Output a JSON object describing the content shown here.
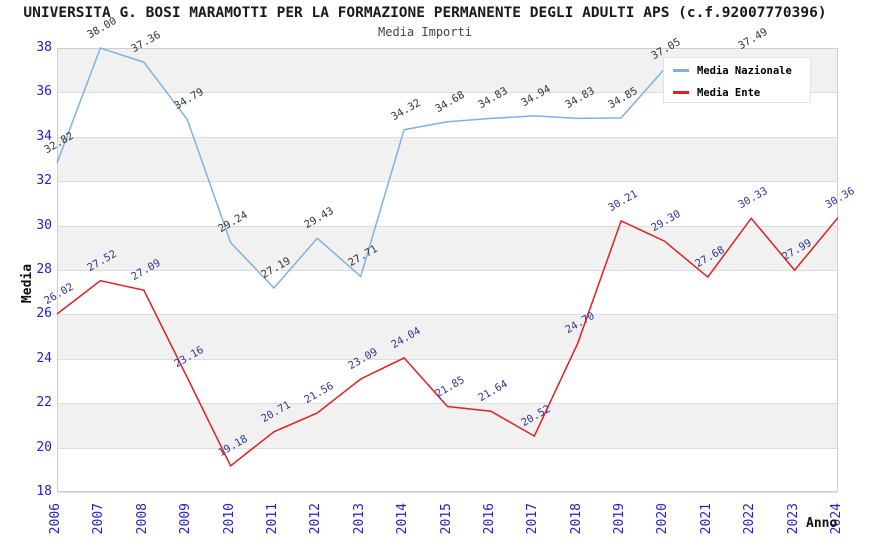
{
  "chart_data": {
    "type": "line",
    "title": "UNIVERSITA G. BOSI MARAMOTTI PER LA FORMAZIONE PERMANENTE DEGLI ADULTI APS (c.f.92007770396)",
    "subtitle": "Media Importi",
    "xlabel": "Anno",
    "ylabel": "Media",
    "ylim": [
      18,
      38
    ],
    "ytick_step": 2,
    "grid": true,
    "legend_position": "top-right",
    "label_decimals": 2,
    "categories": [
      "2006",
      "2007",
      "2008",
      "2009",
      "2010",
      "2011",
      "2012",
      "2013",
      "2014",
      "2015",
      "2016",
      "2017",
      "2018",
      "2019",
      "2020",
      "2021",
      "2022",
      "2023",
      "2024"
    ],
    "series": [
      {
        "name": "Media Nazionale",
        "color": "#7DB2E6",
        "label_color": "#333333",
        "values": [
          32.82,
          38.0,
          37.36,
          34.79,
          29.24,
          27.19,
          29.43,
          27.71,
          34.32,
          34.68,
          34.83,
          34.94,
          34.83,
          34.85,
          37.05,
          null,
          37.49,
          null,
          null
        ]
      },
      {
        "name": "Media Ente",
        "color": "#E02121",
        "label_color": "#333399",
        "values": [
          26.02,
          27.52,
          27.09,
          23.16,
          19.18,
          20.71,
          21.56,
          23.09,
          24.04,
          21.85,
          21.64,
          20.52,
          24.7,
          30.21,
          29.3,
          27.68,
          30.33,
          27.99,
          30.36
        ]
      }
    ],
    "colors": {
      "tick_label": "#2222cc",
      "band_gray": "#f1f1f1",
      "gridline": "#dddddd",
      "plot_border": "#cfcfcf",
      "axis_title": "#111111"
    }
  }
}
